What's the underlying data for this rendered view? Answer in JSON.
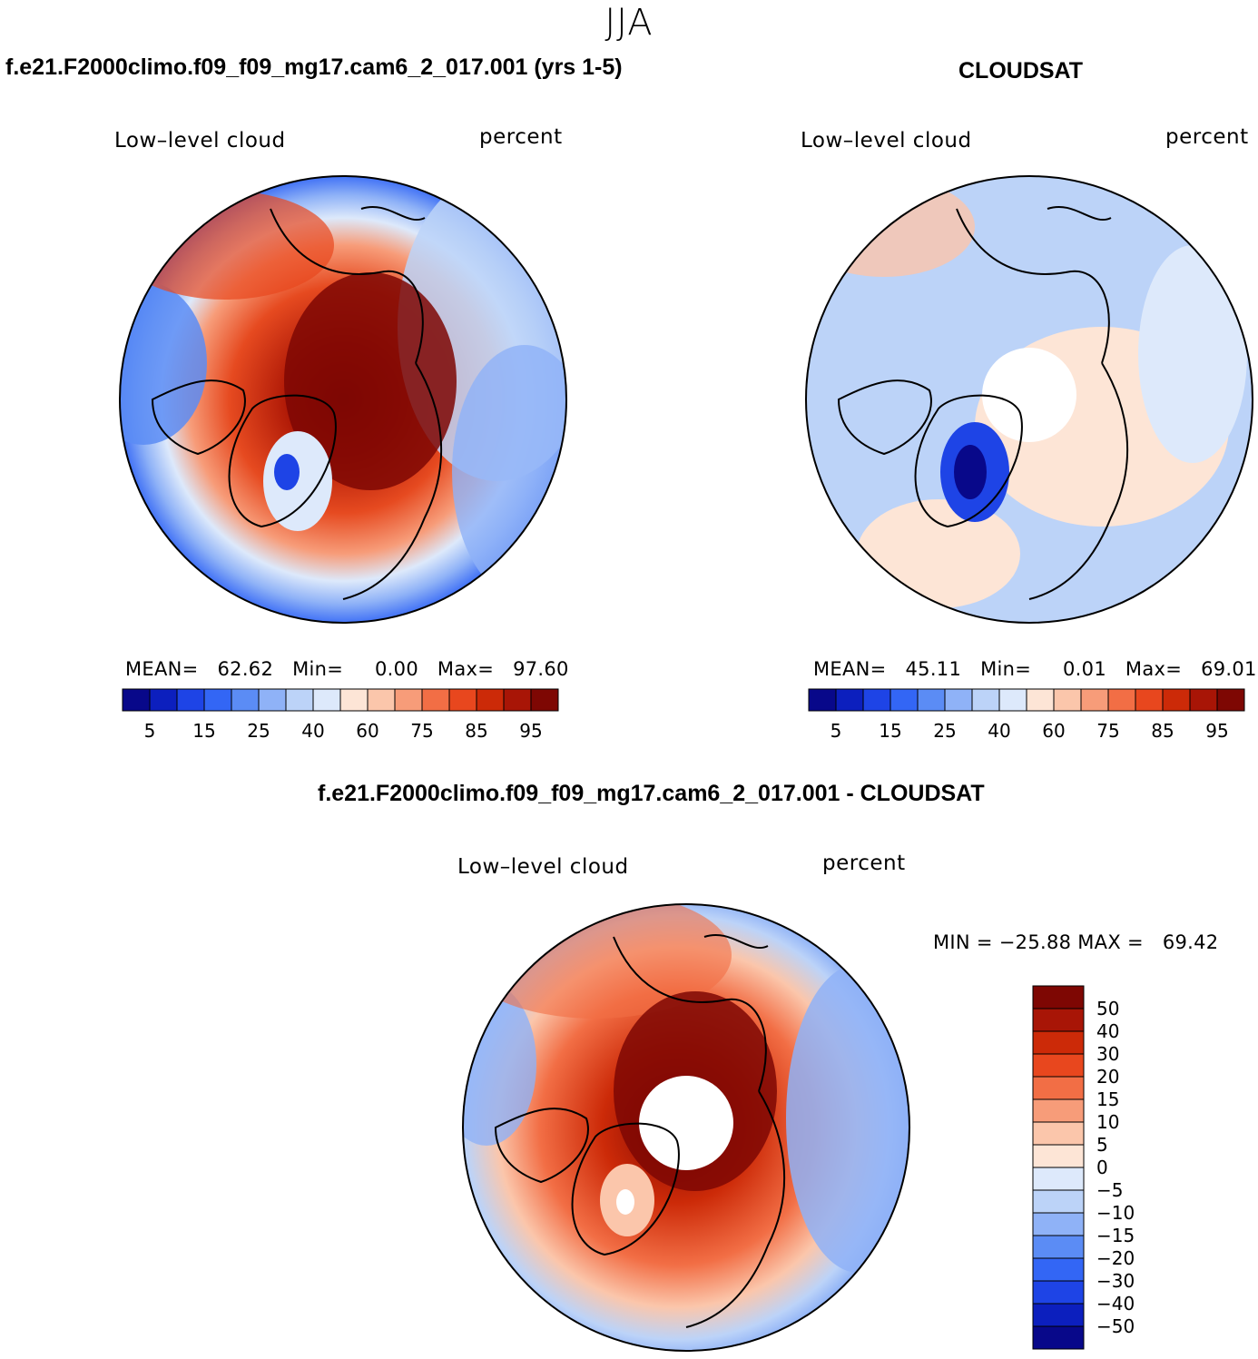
{
  "title": "JJA",
  "panels": [
    {
      "id": "model",
      "title": "f.e21.F2000climo.f09_f09_mg17.cam6_2_017.001 (yrs 1-5)",
      "variable": "Low–level cloud",
      "units": "percent",
      "stats": {
        "mean_label": "MEAN=",
        "mean": "62.62",
        "min_label": "Min=",
        "min": "0.00",
        "max_label": "Max=",
        "max": "97.60"
      },
      "colorbar_ticks": [
        "5",
        "15",
        "25",
        "40",
        "60",
        "75",
        "85",
        "95"
      ]
    },
    {
      "id": "obs",
      "title": "CLOUDSAT",
      "variable": "Low–level cloud",
      "units": "percent",
      "stats": {
        "mean_label": "MEAN=",
        "mean": "45.11",
        "min_label": "Min=",
        "min": "0.01",
        "max_label": "Max=",
        "max": "69.01"
      },
      "colorbar_ticks": [
        "5",
        "15",
        "25",
        "40",
        "60",
        "75",
        "85",
        "95"
      ]
    },
    {
      "id": "diff",
      "title": "f.e21.F2000climo.f09_f09_mg17.cam6_2_017.001 - CLOUDSAT",
      "variable": "Low–level cloud",
      "units": "percent",
      "stats_line": "MIN = −25.88 MAX =   69.42",
      "colorbar_ticks": [
        "50",
        "40",
        "30",
        "20",
        "15",
        "10",
        "5",
        "0",
        "−5",
        "−10",
        "−15",
        "−20",
        "−30",
        "−40",
        "−50"
      ]
    }
  ],
  "palette": [
    "#08088a",
    "#0c1fbe",
    "#1e44e6",
    "#3366f5",
    "#5b8cf5",
    "#8fb2f7",
    "#bcd3f8",
    "#dde9fb",
    "#fde5d6",
    "#fbc6ab",
    "#f79c79",
    "#f26e45",
    "#e8471e",
    "#cc2a08",
    "#a81506",
    "#7e0703"
  ],
  "diff_palette": [
    "#08088a",
    "#0c1fbe",
    "#1e44e6",
    "#3366f5",
    "#5b8cf5",
    "#8fb2f7",
    "#bcd3f8",
    "#dde9fb",
    "#fde5d6",
    "#fbc6ab",
    "#f79c79",
    "#f26e45",
    "#e8471e",
    "#cc2a08",
    "#a81506",
    "#7e0703"
  ]
}
